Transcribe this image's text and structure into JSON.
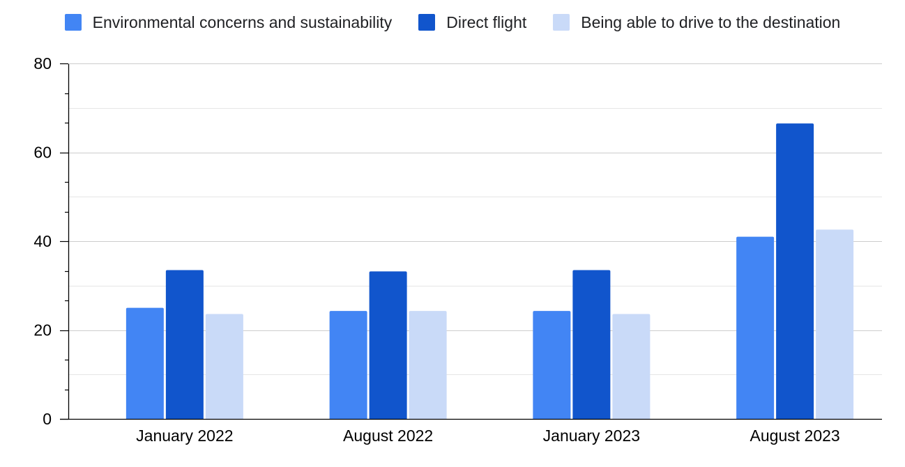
{
  "chart_data": {
    "type": "bar",
    "title": "",
    "xlabel": "",
    "ylabel": "",
    "categories": [
      "January 2022",
      "August 2022",
      "January 2023",
      "August 2023"
    ],
    "series": [
      {
        "name": "Environmental concerns and sustainability",
        "color": "#4285f4",
        "values": [
          25,
          24.3,
          24.3,
          41
        ]
      },
      {
        "name": "Direct flight",
        "color": "#1155cc",
        "values": [
          33.5,
          33.2,
          33.5,
          66.5
        ]
      },
      {
        "name": "Being able to drive to the destination",
        "color": "#c9daf8",
        "values": [
          23.6,
          24.3,
          23.6,
          42.6
        ]
      }
    ],
    "ylim": [
      0,
      80
    ],
    "yticks": [
      0,
      20,
      40,
      60,
      80
    ],
    "grid": true,
    "legend_position": "top"
  }
}
